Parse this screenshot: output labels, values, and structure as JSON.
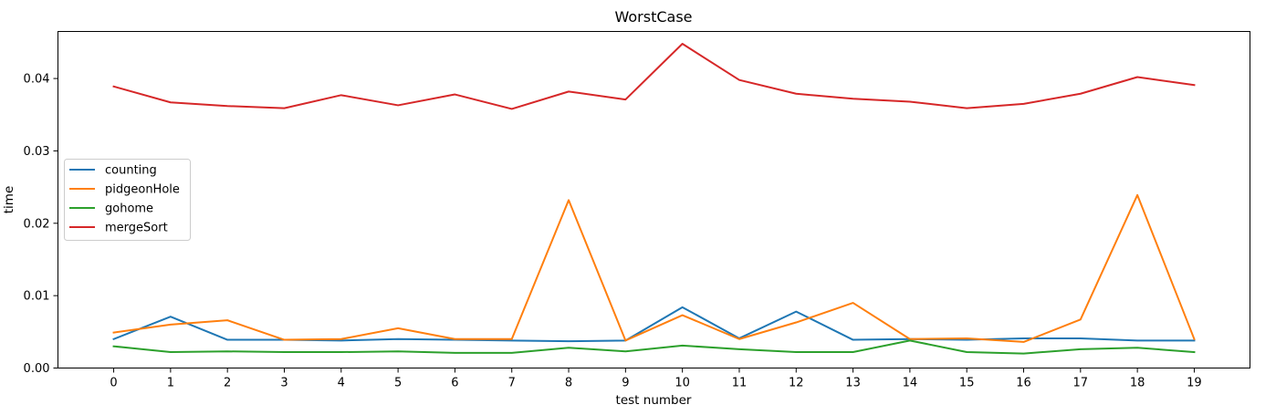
{
  "chart_data": {
    "type": "line",
    "title": "WorstCase",
    "xlabel": "test number",
    "ylabel": "time",
    "x": [
      0,
      1,
      2,
      3,
      4,
      5,
      6,
      7,
      8,
      9,
      10,
      11,
      12,
      13,
      14,
      15,
      16,
      17,
      18,
      19
    ],
    "x_tick_labels": [
      "0",
      "1",
      "2",
      "3",
      "4",
      "5",
      "6",
      "7",
      "8",
      "9",
      "10",
      "11",
      "12",
      "13",
      "14",
      "15",
      "16",
      "17",
      "18",
      "19"
    ],
    "y_ticks": [
      0.0,
      0.01,
      0.02,
      0.03,
      0.04
    ],
    "y_tick_labels": [
      "0.00",
      "0.01",
      "0.02",
      "0.03",
      "0.04"
    ],
    "ylim": [
      0,
      0.0465
    ],
    "xlim": [
      -0.98,
      19.98
    ],
    "grid": false,
    "legend_position": "center-left",
    "series": [
      {
        "name": "counting",
        "color": "#1f77b4",
        "values": [
          0.004,
          0.0071,
          0.0039,
          0.0039,
          0.0038,
          0.004,
          0.0039,
          0.0038,
          0.0037,
          0.0038,
          0.0084,
          0.0041,
          0.0078,
          0.0039,
          0.004,
          0.0039,
          0.0041,
          0.0041,
          0.0038,
          0.0038
        ]
      },
      {
        "name": "pidgeonHole",
        "color": "#ff7f0e",
        "values": [
          0.0049,
          0.006,
          0.0066,
          0.0039,
          0.004,
          0.0055,
          0.004,
          0.004,
          0.0232,
          0.0038,
          0.0073,
          0.004,
          0.0063,
          0.009,
          0.004,
          0.0041,
          0.0036,
          0.0067,
          0.0239,
          0.004
        ]
      },
      {
        "name": "gohome",
        "color": "#2ca02c",
        "values": [
          0.003,
          0.0022,
          0.0023,
          0.0022,
          0.0022,
          0.0023,
          0.0021,
          0.0021,
          0.0028,
          0.0023,
          0.0031,
          0.0026,
          0.0022,
          0.0022,
          0.0038,
          0.0022,
          0.002,
          0.0026,
          0.0028,
          0.0022
        ]
      },
      {
        "name": "mergeSort",
        "color": "#d62728",
        "values": [
          0.0389,
          0.0367,
          0.0362,
          0.0359,
          0.0377,
          0.0363,
          0.0378,
          0.0358,
          0.0382,
          0.0371,
          0.0448,
          0.0398,
          0.0379,
          0.0372,
          0.0368,
          0.0359,
          0.0365,
          0.0379,
          0.0402,
          0.0391
        ]
      }
    ]
  }
}
